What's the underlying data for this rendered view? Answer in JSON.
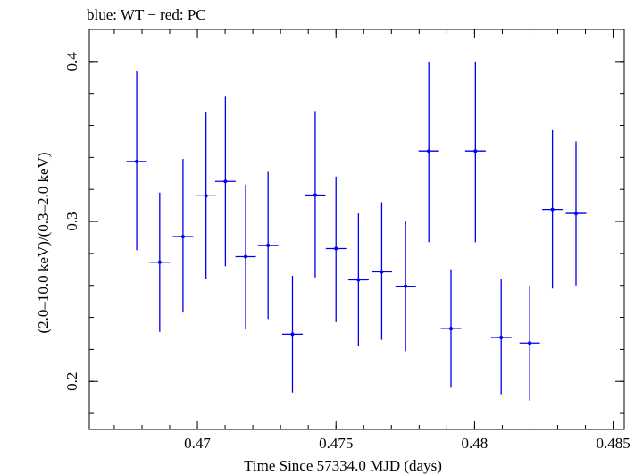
{
  "chart_data": {
    "type": "scatter",
    "title": "blue: WT − red: PC",
    "xlabel": "Time Since 57334.0 MJD (days)",
    "ylabel": "(2.0–10.0 keV)/(0.3–2.0 keV)",
    "xlim": [
      0.4661,
      0.4854
    ],
    "ylim": [
      0.17,
      0.42
    ],
    "x_major_ticks": [
      0.47,
      0.475,
      0.48,
      0.485
    ],
    "x_tick_labels": [
      "0.47",
      "0.475",
      "0.48",
      "0.485"
    ],
    "x_minor_step": 0.001,
    "y_major_ticks": [
      0.2,
      0.3,
      0.4
    ],
    "y_tick_labels": [
      "0.2",
      "0.3",
      "0.4"
    ],
    "y_minor_step": 0.02,
    "grid": false,
    "series": [
      {
        "name": "WT",
        "color": "#0000ee",
        "points": [
          {
            "x": 0.46781,
            "y": 0.3375,
            "xerr": 0.00037,
            "ylo": 0.282,
            "yhi": 0.394
          },
          {
            "x": 0.46864,
            "y": 0.2745,
            "xerr": 0.00037,
            "ylo": 0.231,
            "yhi": 0.318
          },
          {
            "x": 0.46948,
            "y": 0.2905,
            "xerr": 0.00037,
            "ylo": 0.243,
            "yhi": 0.339
          },
          {
            "x": 0.47031,
            "y": 0.316,
            "xerr": 0.00037,
            "ylo": 0.264,
            "yhi": 0.368
          },
          {
            "x": 0.47101,
            "y": 0.325,
            "xerr": 0.00037,
            "ylo": 0.272,
            "yhi": 0.378
          },
          {
            "x": 0.47174,
            "y": 0.278,
            "xerr": 0.00037,
            "ylo": 0.233,
            "yhi": 0.323
          },
          {
            "x": 0.47255,
            "y": 0.285,
            "xerr": 0.00037,
            "ylo": 0.239,
            "yhi": 0.331
          },
          {
            "x": 0.47343,
            "y": 0.2295,
            "xerr": 0.00037,
            "ylo": 0.193,
            "yhi": 0.266
          },
          {
            "x": 0.47425,
            "y": 0.3165,
            "xerr": 0.00037,
            "ylo": 0.265,
            "yhi": 0.369
          },
          {
            "x": 0.475,
            "y": 0.283,
            "xerr": 0.00037,
            "ylo": 0.237,
            "yhi": 0.328
          },
          {
            "x": 0.47581,
            "y": 0.2635,
            "xerr": 0.00037,
            "ylo": 0.222,
            "yhi": 0.305
          },
          {
            "x": 0.47665,
            "y": 0.2685,
            "xerr": 0.00037,
            "ylo": 0.226,
            "yhi": 0.312
          },
          {
            "x": 0.47751,
            "y": 0.2595,
            "xerr": 0.00037,
            "ylo": 0.219,
            "yhi": 0.3
          },
          {
            "x": 0.47835,
            "y": 0.344,
            "xerr": 0.00037,
            "ylo": 0.287,
            "yhi": 0.4
          },
          {
            "x": 0.47915,
            "y": 0.233,
            "xerr": 0.00037,
            "ylo": 0.196,
            "yhi": 0.27
          },
          {
            "x": 0.48003,
            "y": 0.344,
            "xerr": 0.00037,
            "ylo": 0.287,
            "yhi": 0.4
          },
          {
            "x": 0.48096,
            "y": 0.2275,
            "xerr": 0.00037,
            "ylo": 0.192,
            "yhi": 0.264
          },
          {
            "x": 0.48199,
            "y": 0.224,
            "xerr": 0.00037,
            "ylo": 0.188,
            "yhi": 0.26
          },
          {
            "x": 0.48281,
            "y": 0.3075,
            "xerr": 0.00037,
            "ylo": 0.258,
            "yhi": 0.357
          },
          {
            "x": 0.48366,
            "y": 0.305,
            "xerr": 0.00037,
            "ylo": 0.26,
            "yhi": 0.35
          }
        ]
      }
    ]
  }
}
